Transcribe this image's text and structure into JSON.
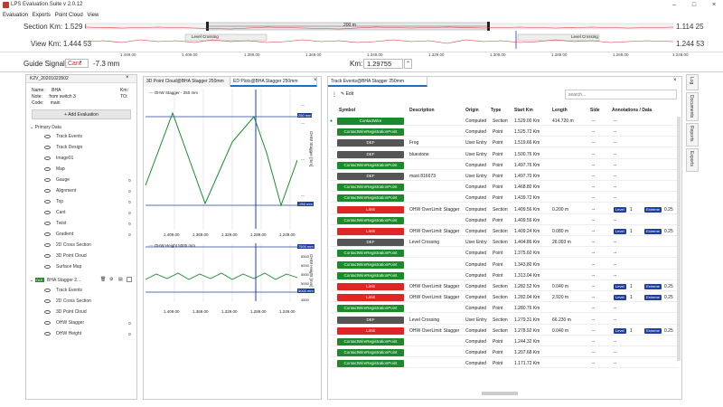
{
  "window": {
    "title": "LPS Evaluation Suite v 2.0.12"
  },
  "menu": [
    "Evaluation",
    "Exports",
    "Point Cloud",
    "View"
  ],
  "overview": {
    "section_label": "Section Km:",
    "section_start": "1.529 00",
    "section_end": "1.114 25",
    "view_label": "View Km:",
    "view_start": "1.444 53",
    "view_end": "1.244 53",
    "span_label": "200 m",
    "marker_left": "Level Crossing",
    "marker_right": "Level Crossing"
  },
  "ruler_ticks": [
    "1.449.00",
    "1.409.00",
    "1.389.00",
    "1.369.00",
    "1.349.00",
    "1.329.00",
    "1.309.00",
    "1.289.00",
    "1.269.00",
    "1.249.00"
  ],
  "guide": {
    "label": "Guide Signal:",
    "select": "Cant",
    "value": "-7.3 mm",
    "km_label": "Km:",
    "km_value": "1.29755"
  },
  "left_panel": {
    "title": "K2V_20201023502",
    "name_label": "Name:",
    "name": "BHA",
    "note_label": "Note:",
    "note": "from switch 3",
    "code_label": "Code:",
    "code": "main",
    "km_label": "Km:",
    "to_label": "TO:",
    "add_button": "Add Evaluation",
    "group1": "Primary Data",
    "items1": [
      "Track Events",
      "Track Design",
      "Image01",
      "Map",
      "Gauge",
      "Alignment",
      "Top",
      "Cant",
      "Twist",
      "Gradient",
      "2D Cross Section",
      "3D Point Cloud",
      "Surface Map"
    ],
    "group2_badge": "OLE",
    "group2": "BHA Stagger 2...",
    "items2": [
      "Track Events",
      "2D Cross Section",
      "3D Point Cloud",
      "OHW Stagger",
      "OHW Height"
    ]
  },
  "mid_panel": {
    "tab1": "3D Point Cloud@BHA Stagger 250mm",
    "tab2": "ED Plots@BHA Stagger 250mm",
    "plot1_legend": "OHW Stagger - 250 mm",
    "plot1_ylabel": "OHW Stagger [mm]",
    "plot1_top_label": "250 mm",
    "plot1_bottom_label": "-250 mm",
    "plot1_xticks": [
      "1.409.00",
      "1.369.00",
      "1.329.00",
      "1.289.00",
      "1.249.00"
    ],
    "plot2_legend": "OHW Height 5000 mm",
    "plot2_ylabel": "OHW Height [mm]",
    "plot2_top_label": "7500 mm",
    "plot2_bottom_label": "5000 mm",
    "plot2_yticks": [
      "6500",
      "6000",
      "5500",
      "5000",
      "4500"
    ],
    "plot2_xticks": [
      "1.409.00",
      "1.369.00",
      "1.329.00",
      "1.289.00",
      "1.249.00"
    ]
  },
  "right_panel": {
    "tab": "Track Events@BHA Stagger 250mm",
    "edit": "Edit",
    "search_placeholder": "search...",
    "headers": [
      "Symbol",
      "Description",
      "Origin",
      "Type",
      "Start Km",
      "Length",
      "Side",
      "Annotations / Data"
    ],
    "rows": [
      {
        "sym": "ContactWire",
        "kind": "g",
        "desc": "",
        "origin": "Computed",
        "type": "Section",
        "km": "1.529.00 Km",
        "len": "414.720 m",
        "side": "--",
        "ann": "--"
      },
      {
        "sym": "ContactWireRegistrationPoint",
        "kind": "g",
        "desc": "",
        "origin": "Computed",
        "type": "Point",
        "km": "1.525.72 Km",
        "len": "",
        "side": "--",
        "ann": "--"
      },
      {
        "sym": "DEF",
        "kind": "d",
        "desc": "Frog",
        "origin": "User Entry",
        "type": "Point",
        "km": "1.519.66 Km",
        "len": "",
        "side": "--",
        "ann": "--"
      },
      {
        "sym": "DEF",
        "kind": "d",
        "desc": "bluestone",
        "origin": "User Entry",
        "type": "Point",
        "km": "1.500.76 Km",
        "len": "",
        "side": "--",
        "ann": "--"
      },
      {
        "sym": "ContactWireRegistrationPoint",
        "kind": "g",
        "desc": "",
        "origin": "Computed",
        "type": "Point",
        "km": "1.497.76 Km",
        "len": "",
        "side": "--",
        "ann": "--"
      },
      {
        "sym": "DEF",
        "kind": "d",
        "desc": "mast 816673",
        "origin": "User Entry",
        "type": "Point",
        "km": "1.497.70 Km",
        "len": "",
        "side": "--",
        "ann": "--"
      },
      {
        "sym": "ContactWireRegistrationPoint",
        "kind": "g",
        "desc": "",
        "origin": "Computed",
        "type": "Point",
        "km": "1.468.80 Km",
        "len": "",
        "side": "--",
        "ann": "--"
      },
      {
        "sym": "ContactWireRegistrationPoint",
        "kind": "g",
        "desc": "",
        "origin": "Computed",
        "type": "Point",
        "km": "1.439.72 Km",
        "len": "",
        "side": "--",
        "ann": "--"
      },
      {
        "sym": "Limit",
        "kind": "r",
        "desc": "OHW OverLimit: Stagger",
        "origin": "Computed",
        "type": "Section",
        "km": "1.409.56 Km",
        "len": "0.200 m",
        "side": "--",
        "ann": "lvl"
      },
      {
        "sym": "ContactWireRegistrationPoint",
        "kind": "g",
        "desc": "",
        "origin": "Computed",
        "type": "Point",
        "km": "1.409.56 Km",
        "len": "",
        "side": "--",
        "ann": "--"
      },
      {
        "sym": "Limit",
        "kind": "r",
        "desc": "OHW OverLimit: Stagger",
        "origin": "Computed",
        "type": "Section",
        "km": "1.409.24 Km",
        "len": "0.080 m",
        "side": "--",
        "ann": "lvl"
      },
      {
        "sym": "DEF",
        "kind": "d",
        "desc": "Level Crossing",
        "origin": "User Entry",
        "type": "Section",
        "km": "1.404.86 Km",
        "len": "26.093 m",
        "side": "--",
        "ann": "--"
      },
      {
        "sym": "ContactWireRegistrationPoint",
        "kind": "g",
        "desc": "",
        "origin": "Computed",
        "type": "Point",
        "km": "1.375.60 Km",
        "len": "",
        "side": "--",
        "ann": "--"
      },
      {
        "sym": "ContactWireRegistrationPoint",
        "kind": "g",
        "desc": "",
        "origin": "Computed",
        "type": "Point",
        "km": "1.343.80 Km",
        "len": "",
        "side": "--",
        "ann": "--"
      },
      {
        "sym": "ContactWireRegistrationPoint",
        "kind": "g",
        "desc": "",
        "origin": "Computed",
        "type": "Point",
        "km": "1.313.04 Km",
        "len": "",
        "side": "--",
        "ann": "--"
      },
      {
        "sym": "Limit",
        "kind": "r",
        "desc": "OHW OverLimit: Stagger",
        "origin": "Computed",
        "type": "Section",
        "km": "1.282.52 Km",
        "len": "0.040 m",
        "side": "--",
        "ann": "lvl"
      },
      {
        "sym": "Limit",
        "kind": "r",
        "desc": "OHW OverLimit: Stagger",
        "origin": "Computed",
        "type": "Section",
        "km": "1.282.04 Km",
        "len": "2.920 m",
        "side": "--",
        "ann": "lvl"
      },
      {
        "sym": "ContactWireRegistrationPoint",
        "kind": "g",
        "desc": "",
        "origin": "Computed",
        "type": "Point",
        "km": "1.280.76 Km",
        "len": "",
        "side": "--",
        "ann": "--"
      },
      {
        "sym": "DEF",
        "kind": "d",
        "desc": "Level Crossing",
        "origin": "User Entry",
        "type": "Section",
        "km": "1.279.31 Km",
        "len": "66.230 m",
        "side": "--",
        "ann": "--"
      },
      {
        "sym": "Limit",
        "kind": "r",
        "desc": "OHW OverLimit: Stagger",
        "origin": "Computed",
        "type": "Section",
        "km": "1.278.92 Km",
        "len": "0.040 m",
        "side": "--",
        "ann": "lvl"
      },
      {
        "sym": "ContactWireRegistrationPoint",
        "kind": "g",
        "desc": "",
        "origin": "Computed",
        "type": "Point",
        "km": "1.244.32 Km",
        "len": "",
        "side": "--",
        "ann": "--"
      },
      {
        "sym": "ContactWireRegistrationPoint",
        "kind": "g",
        "desc": "",
        "origin": "Computed",
        "type": "Point",
        "km": "1.207.68 Km",
        "len": "",
        "side": "--",
        "ann": "--"
      },
      {
        "sym": "ContactWireRegistrationPoint",
        "kind": "g",
        "desc": "",
        "origin": "Computed",
        "type": "Point",
        "km": "1.171.72 Km",
        "len": "",
        "side": "--",
        "ann": "--"
      }
    ],
    "ann_level": "Level",
    "ann_num": "1",
    "ann_extreme": "Extreme",
    "ann_val": "0.25"
  },
  "side_tabs": [
    "Log",
    "Documents",
    "Reports",
    "Exports"
  ],
  "colors": {
    "accent": "#1f6fbf",
    "green": "#1a8a2a",
    "red": "#e02525",
    "def": "#555555",
    "navy": "#1f3f9f"
  }
}
